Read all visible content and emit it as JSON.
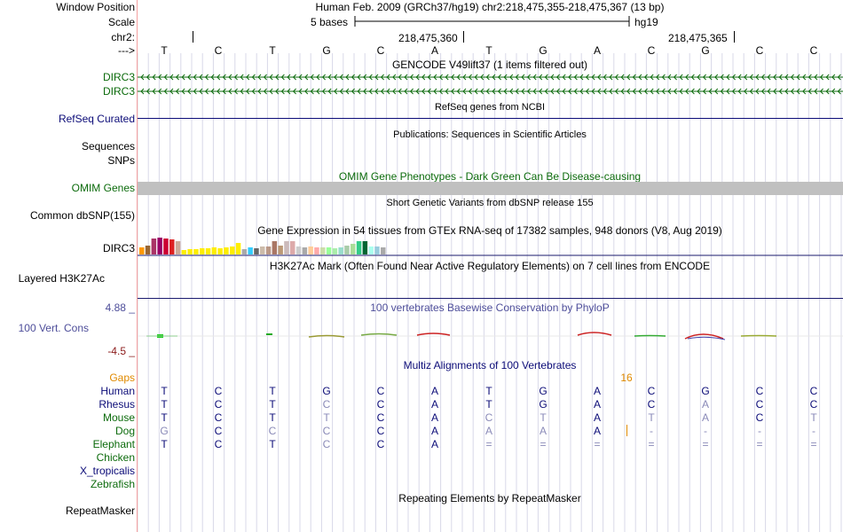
{
  "labels": {
    "window_position": "Window Position",
    "scale": "Scale",
    "chrom": "chr2:",
    "strand": "--->",
    "dirc3_a": "DIRC3",
    "dirc3_b": "DIRC3",
    "refseq": "RefSeq Curated",
    "sequences": "Sequences",
    "snps": "SNPs",
    "omim": "OMIM Genes",
    "common_dbsnp": "Common dbSNP(155)",
    "gtex_gene": "DIRC3",
    "h3k27ac": "Layered H3K27Ac",
    "phylop_max": "4.88 _",
    "vert_cons": "100 Vert. Cons",
    "phylop_min": "-4.5 _",
    "gaps": "Gaps",
    "human": "Human",
    "rhesus": "Rhesus",
    "mouse": "Mouse",
    "dog": "Dog",
    "elephant": "Elephant",
    "chicken": "Chicken",
    "x_tropicalis": "X_tropicalis",
    "zebrafish": "Zebrafish",
    "repeatmasker": "RepeatMasker"
  },
  "header": {
    "title": "Human Feb. 2009 (GRCh37/hg19)   chr2:218,475,355-218,475,367 (13 bp)",
    "scale_text": "5 bases",
    "assembly": "hg19",
    "pos1": "218,475,360",
    "pos2": "218,475,365"
  },
  "bases": [
    "T",
    "C",
    "T",
    "G",
    "C",
    "A",
    "T",
    "G",
    "A",
    "C",
    "G",
    "C",
    "C"
  ],
  "tracks": {
    "gencode": "GENCODE V49lift37 (1 items filtered out)",
    "refseq": "RefSeq genes from NCBI",
    "publications": "Publications: Sequences in Scientific Articles",
    "omim": "OMIM Gene Phenotypes - Dark Green Can Be Disease-causing",
    "dbsnp": "Short Genetic Variants from dbSNP release 155",
    "gtex": "Gene Expression in 54 tissues from GTEx RNA-seq of 17382 samples, 948 donors (V8, Aug 2019)",
    "h3k27ac": "H3K27Ac Mark (Often Found Near Active Regulatory Elements) on 7 cell lines from ENCODE",
    "phylop": "100 vertebrates Basewise Conservation by PhyloP",
    "multiz": "Multiz Alignments of 100 Vertebrates",
    "repeatmasker": "Repeating Elements by RepeatMasker",
    "gap_count": "16"
  },
  "alignment": {
    "human": [
      "T",
      "C",
      "T",
      "G",
      "C",
      "A",
      "T",
      "G",
      "A",
      "C",
      "G",
      "C",
      "C"
    ],
    "rhesus": [
      "T",
      "C",
      "T",
      "C",
      "C",
      "A",
      "T",
      "G",
      "A",
      "C",
      "A",
      "C",
      "C"
    ],
    "mouse": [
      "T",
      "C",
      "T",
      "T",
      "C",
      "A",
      "C",
      "T",
      "A",
      "T",
      "A",
      "C",
      "T"
    ],
    "dog": [
      "G",
      "C",
      "C",
      "C",
      "C",
      "A",
      "A",
      "A",
      "A",
      "-",
      "-",
      "-",
      "-"
    ],
    "elephant": [
      "T",
      "C",
      "T",
      "C",
      "C",
      "A",
      "=",
      "=",
      "=",
      "=",
      "=",
      "=",
      "="
    ]
  },
  "colors": {
    "gene_green": "#0c6b0c",
    "refseq_navy": "#0c0c78",
    "omim_grey": "#c0c0c0",
    "h3k27ac_navy": "#1a1a6e",
    "phylop_purple": "#4e4e9a",
    "gaps_orange": "#e08a00",
    "grid": "#d8d8e8"
  },
  "gtex_bar_colors": [
    "#ff9900",
    "#996633",
    "#aa3366",
    "#990066",
    "#cc0033",
    "#dd2222",
    "#ccaa99",
    "#ffee00",
    "#ffee00",
    "#ffee00",
    "#ffee00",
    "#ffee00",
    "#ffee00",
    "#ffee00",
    "#ffee00",
    "#ffee00",
    "#ffee00",
    "#aaaaaa",
    "#33ccff",
    "#666666",
    "#ccbbaa",
    "#bb9988",
    "#aa7766",
    "#bb9977",
    "#ccbbbb",
    "#ddaaaa",
    "#cccccc",
    "#aaaaaa",
    "#ffcc99",
    "#ffaaaa",
    "#ccddaa",
    "#99ff99",
    "#aaeeaa",
    "#99ddcc",
    "#aaccaa",
    "#aadd99",
    "#33cc88",
    "#006633",
    "#aaffee",
    "#99ccdd",
    "#aaaaaa"
  ]
}
